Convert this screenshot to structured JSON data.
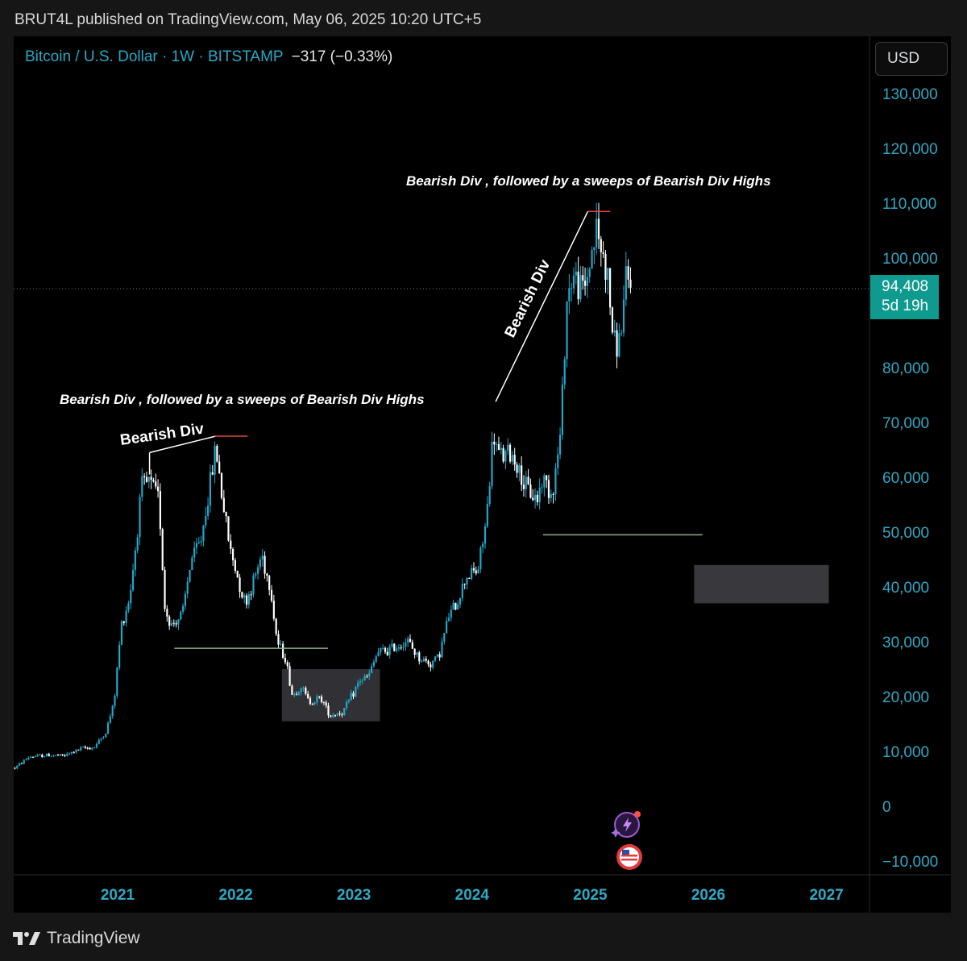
{
  "header": {
    "text": "BRUT4L published on TradingView.com, May 06, 2025 10:20 UTC+5"
  },
  "chart_header": {
    "symbol": "Bitcoin / U.S. Dollar · 1W · BITSTAMP",
    "change": "−317 (−0.33%)"
  },
  "currency_button": {
    "label": "USD"
  },
  "price_tag": {
    "price": "94,408",
    "countdown": "5d 19h"
  },
  "footer": {
    "brand": "TradingView"
  },
  "colors": {
    "background": "#000000",
    "bull": "#22a6c8",
    "bear": "#ffffff",
    "axis_text": "#2fa8c4",
    "price_tag": "#0e9a8e",
    "support_line": "#8fae8f",
    "high_marker": "#e04545"
  },
  "icons": [
    "tradingview-logo-icon",
    "flash-news-icon",
    "us-flag-icon"
  ],
  "chart_data": {
    "type": "candlestick",
    "title": "Bitcoin / U.S. Dollar · 1W · BITSTAMP",
    "xlabel": "",
    "ylabel": "",
    "ylim": [
      -10000,
      130000
    ],
    "y_ticks": [
      130000,
      120000,
      110000,
      100000,
      80000,
      70000,
      60000,
      50000,
      40000,
      30000,
      20000,
      10000,
      0,
      -10000
    ],
    "y_tick_labels": [
      "130,000",
      "120,000",
      "110,000",
      "100,000",
      "80,000",
      "70,000",
      "60,000",
      "50,000",
      "40,000",
      "30,000",
      "20,000",
      "10,000",
      "0",
      "−10,000"
    ],
    "x_range": [
      2020.12,
      2027.25
    ],
    "x_ticks": [
      2021,
      2022,
      2023,
      2024,
      2025,
      2026,
      2027
    ],
    "x_tick_labels": [
      "2021",
      "2022",
      "2023",
      "2024",
      "2025",
      "2026",
      "2027"
    ],
    "last_price": 94408,
    "close_series": {
      "t": [
        2020.13,
        2020.25,
        2020.4,
        2020.55,
        2020.7,
        2020.8,
        2020.9,
        2020.97,
        2021.03,
        2021.1,
        2021.15,
        2021.2,
        2021.27,
        2021.35,
        2021.4,
        2021.45,
        2021.55,
        2021.62,
        2021.7,
        2021.8,
        2021.83,
        2021.88,
        2021.95,
        2022.0,
        2022.08,
        2022.15,
        2022.22,
        2022.3,
        2022.35,
        2022.42,
        2022.48,
        2022.55,
        2022.62,
        2022.72,
        2022.8,
        2022.85,
        2022.9,
        2022.98,
        2023.05,
        2023.12,
        2023.2,
        2023.3,
        2023.45,
        2023.55,
        2023.65,
        2023.72,
        2023.8,
        2023.88,
        2023.95,
        2024.05,
        2024.12,
        2024.18,
        2024.22,
        2024.35,
        2024.45,
        2024.55,
        2024.6,
        2024.68,
        2024.75,
        2024.8,
        2024.85,
        2024.9,
        2024.95,
        2025.02,
        2025.05,
        2025.1,
        2025.15,
        2025.2,
        2025.25,
        2025.3,
        2025.35
      ],
      "v": [
        7000,
        9000,
        9300,
        9200,
        10600,
        10700,
        13500,
        19000,
        33000,
        38000,
        47000,
        58000,
        59000,
        56000,
        36000,
        33000,
        35000,
        45000,
        48000,
        61000,
        66000,
        57000,
        47000,
        43000,
        37000,
        41000,
        46000,
        39000,
        30000,
        27000,
        20000,
        22000,
        19000,
        19800,
        16500,
        17000,
        17000,
        20000,
        23000,
        23500,
        28000,
        28500,
        30200,
        27000,
        26000,
        27500,
        34500,
        37500,
        42000,
        43000,
        52000,
        68000,
        64000,
        64000,
        58000,
        56000,
        60000,
        57000,
        68000,
        92000,
        97000,
        95000,
        94000,
        102000,
        105000,
        101000,
        96000,
        84000,
        85000,
        95000,
        94400
      ]
    },
    "annotations": [
      {
        "text": "Bearish Div , followed by a sweeps of Bearish Div Highs",
        "kind": "caption"
      },
      {
        "text": "Bearish Div",
        "kind": "trendline-label"
      },
      {
        "text": "Bearish Div , followed by a sweeps of Bearish Div Highs",
        "kind": "caption"
      },
      {
        "text": "Bearish Div",
        "kind": "trendline-label"
      }
    ],
    "grid": false,
    "legend": "none"
  }
}
